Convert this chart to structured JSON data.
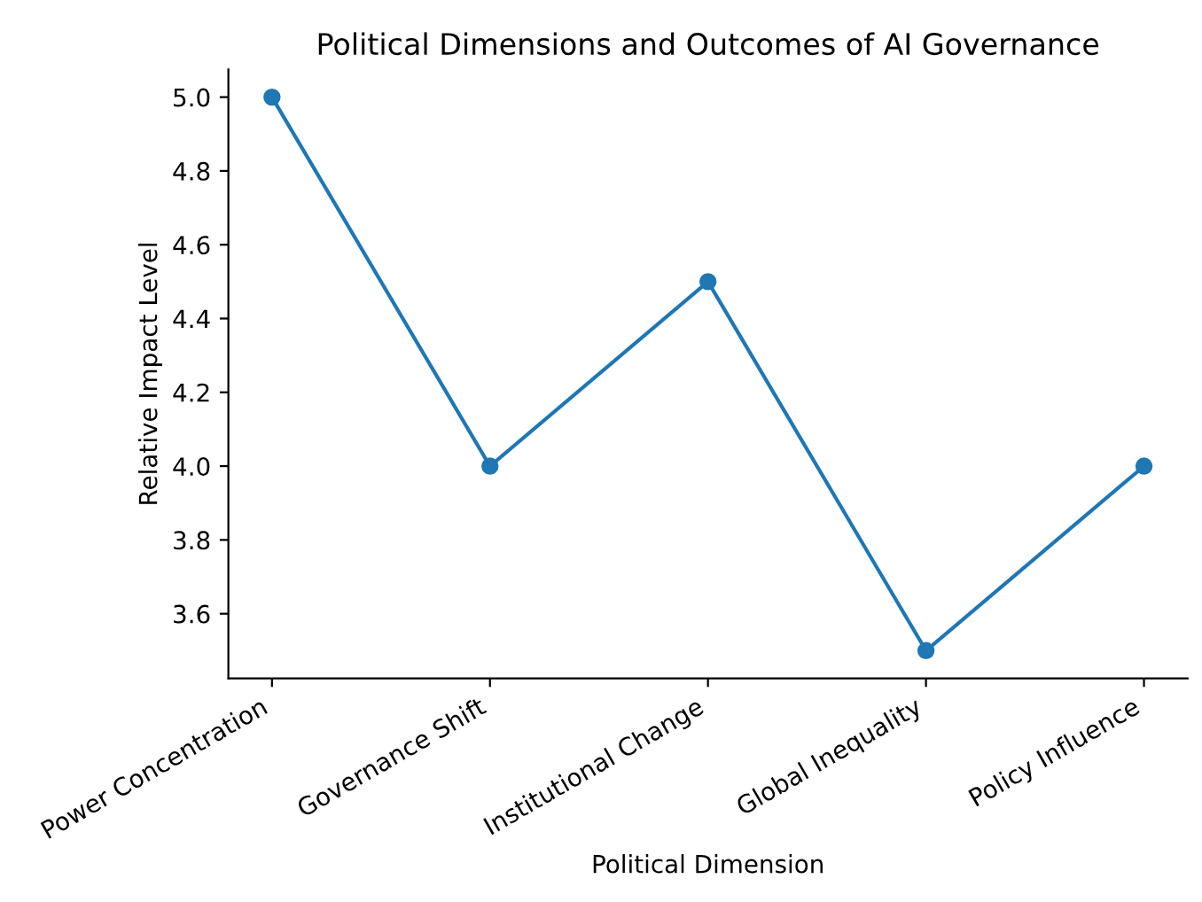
{
  "chart_data": {
    "type": "line",
    "title": "Political Dimensions and Outcomes of AI Governance",
    "xlabel": "Political Dimension",
    "ylabel": "Relative Impact Level",
    "categories": [
      "Power Concentration",
      "Governance Shift",
      "Institutional Change",
      "Global Inequality",
      "Policy Influence"
    ],
    "series": [
      {
        "color": "#1f77b4",
        "values": [
          5.0,
          4.0,
          4.5,
          3.5,
          4.0
        ]
      }
    ],
    "ylim": [
      3.425,
      5.075
    ],
    "yticks": [
      3.6,
      3.8,
      {
        "value": 4,
        "label": "4.0"
      },
      4.2,
      4.4,
      4.6,
      4.8,
      {
        "value": 5,
        "label": "5.0"
      }
    ],
    "marker": "circle",
    "line_style": "solid",
    "grid": false,
    "legend": false
  }
}
